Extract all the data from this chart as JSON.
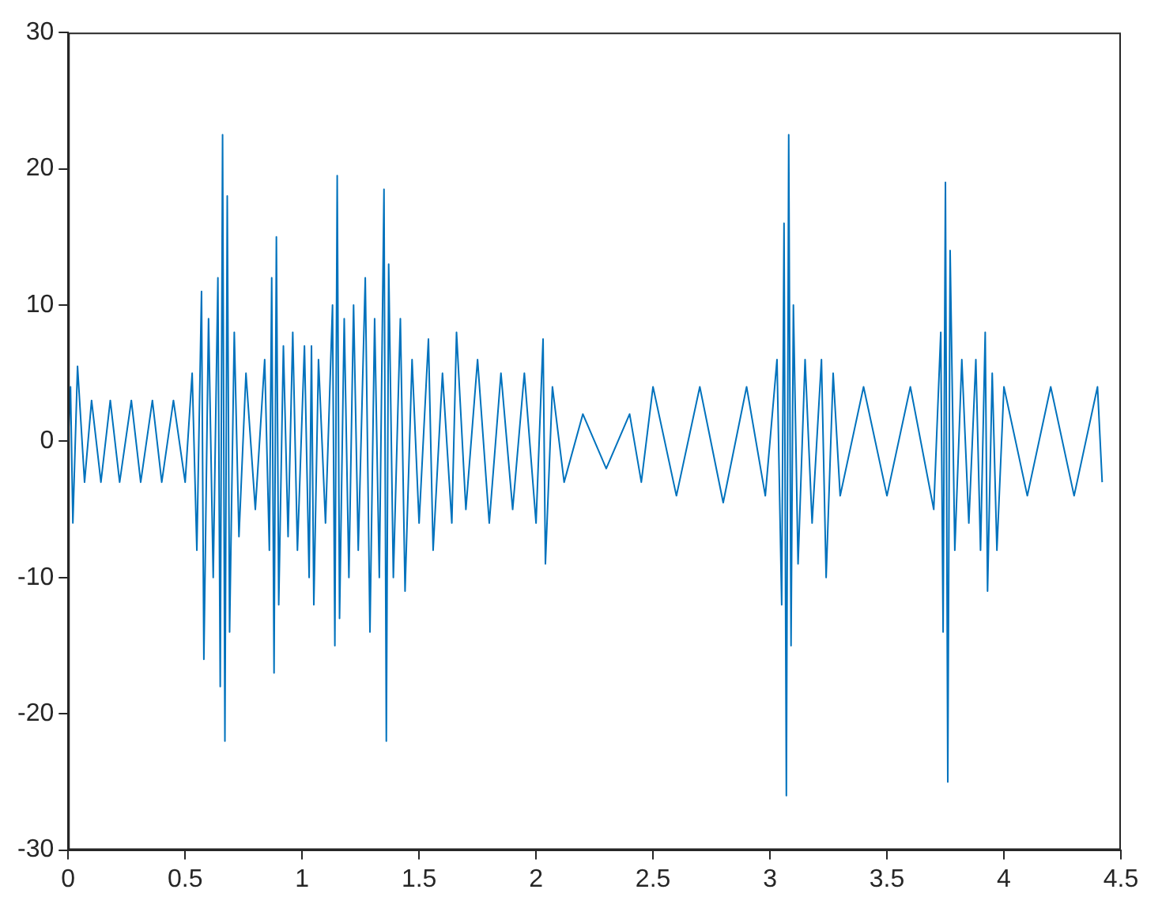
{
  "chart_data": {
    "type": "line",
    "x": [
      0,
      0.01,
      0.02,
      0.04,
      0.07,
      0.1,
      0.14,
      0.18,
      0.22,
      0.27,
      0.31,
      0.36,
      0.4,
      0.45,
      0.5,
      0.53,
      0.55,
      0.57,
      0.58,
      0.6,
      0.62,
      0.64,
      0.65,
      0.66,
      0.67,
      0.68,
      0.69,
      0.71,
      0.73,
      0.76,
      0.8,
      0.84,
      0.86,
      0.87,
      0.88,
      0.89,
      0.9,
      0.92,
      0.94,
      0.96,
      0.98,
      1.01,
      1.03,
      1.04,
      1.05,
      1.07,
      1.1,
      1.13,
      1.14,
      1.15,
      1.16,
      1.18,
      1.2,
      1.22,
      1.24,
      1.27,
      1.29,
      1.31,
      1.33,
      1.35,
      1.36,
      1.37,
      1.39,
      1.42,
      1.44,
      1.47,
      1.5,
      1.54,
      1.56,
      1.6,
      1.64,
      1.66,
      1.7,
      1.75,
      1.8,
      1.85,
      1.9,
      1.95,
      2.0,
      2.03,
      2.04,
      2.07,
      2.12,
      2.2,
      2.3,
      2.4,
      2.45,
      2.5,
      2.6,
      2.7,
      2.8,
      2.9,
      2.98,
      3.03,
      3.05,
      3.06,
      3.07,
      3.08,
      3.09,
      3.1,
      3.12,
      3.15,
      3.18,
      3.22,
      3.24,
      3.27,
      3.3,
      3.4,
      3.5,
      3.6,
      3.7,
      3.73,
      3.74,
      3.75,
      3.76,
      3.77,
      3.79,
      3.82,
      3.85,
      3.88,
      3.9,
      3.92,
      3.93,
      3.95,
      3.97,
      4.0,
      4.1,
      4.2,
      4.3,
      4.4,
      4.42
    ],
    "series": [
      {
        "color": "#0072bd",
        "values": [
          0,
          4,
          -6,
          5.5,
          -3,
          3,
          -3,
          3,
          -3,
          3,
          -3,
          3,
          -3,
          3,
          -3,
          5,
          -8,
          11,
          -16,
          9,
          -10,
          12,
          -18,
          22.5,
          -22,
          18,
          -14,
          8,
          -7,
          5,
          -5,
          6,
          -8,
          12,
          -17,
          15,
          -12,
          7,
          -7,
          8,
          -8,
          7,
          -10,
          7,
          -12,
          6,
          -6,
          10,
          -15,
          19.5,
          -13,
          9,
          -10,
          10,
          -8,
          12,
          -14,
          9,
          -10,
          18.5,
          -22,
          13,
          -10,
          9,
          -11,
          6,
          -6,
          7.5,
          -8,
          5,
          -6,
          8,
          -5,
          6,
          -6,
          5,
          -5,
          5,
          -6,
          7.5,
          -9,
          4,
          -3,
          2,
          -2,
          2,
          -3,
          4,
          -4,
          4,
          -4.5,
          4,
          -4,
          6,
          -12,
          16,
          -26,
          22.5,
          -15,
          10,
          -9,
          6,
          -6,
          6,
          -10,
          5,
          -4,
          4,
          -4,
          4,
          -5,
          8,
          -14,
          19,
          -25,
          14,
          -8,
          6,
          -6,
          6,
          -8,
          8,
          -11,
          5,
          -8,
          4,
          -4,
          4,
          -4,
          4,
          -3
        ]
      }
    ],
    "xlim": [
      0,
      4.5
    ],
    "xticks": [
      0,
      0.5,
      1,
      1.5,
      2,
      2.5,
      3,
      3.5,
      4,
      4.5
    ],
    "ylim": [
      -30,
      30
    ],
    "yticks": [
      -30,
      -20,
      -10,
      0,
      10,
      20,
      30
    ],
    "grid": false,
    "legend": false,
    "marker": "none",
    "line_style": "solid"
  }
}
